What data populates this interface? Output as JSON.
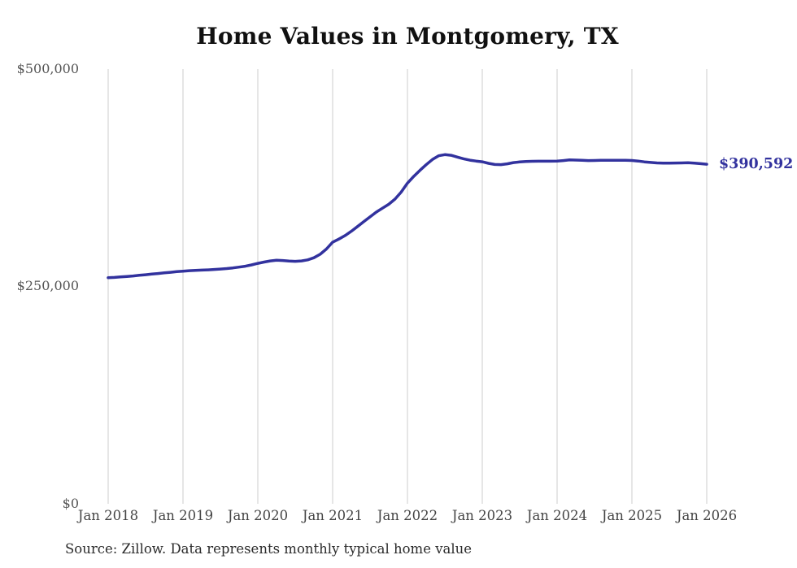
{
  "title": "Home Values in Montgomery, TX",
  "source_note": "Source: Zillow. Data represents monthly typical home value",
  "end_value_label": "$390,592",
  "colors": {
    "line": "#32329e",
    "grid": "#cccccc",
    "y_tick_text": "#555555",
    "x_tick_text": "#444444",
    "title_text": "#111111",
    "annotation_text": "#32329e",
    "background": "#ffffff"
  },
  "y_axis": {
    "ticks": [
      "$500,000",
      "$250,000",
      "$0"
    ],
    "min": 0,
    "max": 500000
  },
  "x_axis": {
    "ticks": [
      "Jan 2018",
      "Jan 2019",
      "Jan 2020",
      "Jan 2021",
      "Jan 2022",
      "Jan 2023",
      "Jan 2024",
      "Jan 2025",
      "Jan 2026"
    ]
  },
  "chart_data": {
    "type": "line",
    "title": "Home Values in Montgomery, TX",
    "xlabel": "",
    "ylabel": "",
    "unit": "USD",
    "interval": "monthly",
    "x_start": "Jan 2018",
    "x_end": "Jan 2026",
    "ylim": [
      0,
      500000
    ],
    "grid": "vertical-only",
    "legend": "none",
    "annotation": {
      "text": "$390,592",
      "at": "last-point"
    },
    "final_value": 390592,
    "series": [
      {
        "name": "Typical home value",
        "values": [
          260000,
          260400,
          260900,
          261500,
          262100,
          262800,
          263500,
          264200,
          264900,
          265600,
          266300,
          267000,
          267600,
          268100,
          268500,
          268800,
          269100,
          269500,
          270000,
          270600,
          271300,
          272200,
          273300,
          274800,
          276500,
          278000,
          279300,
          280100,
          279800,
          279200,
          278900,
          279300,
          280600,
          283000,
          287000,
          293000,
          300800,
          304500,
          308500,
          313500,
          319000,
          324500,
          330000,
          335500,
          340000,
          344500,
          350500,
          358500,
          368800,
          376500,
          383500,
          390000,
          396000,
          400300,
          401600,
          400800,
          398800,
          396800,
          395200,
          394200,
          393400,
          391600,
          390300,
          390100,
          391000,
          392400,
          393200,
          393700,
          393900,
          394000,
          394000,
          394000,
          394100,
          394800,
          395500,
          395300,
          395000,
          394800,
          394900,
          395000,
          395000,
          395100,
          395100,
          395000,
          394900,
          394200,
          393300,
          392600,
          392100,
          391900,
          391900,
          392000,
          392100,
          392200,
          391900,
          391200,
          390592
        ]
      }
    ]
  }
}
